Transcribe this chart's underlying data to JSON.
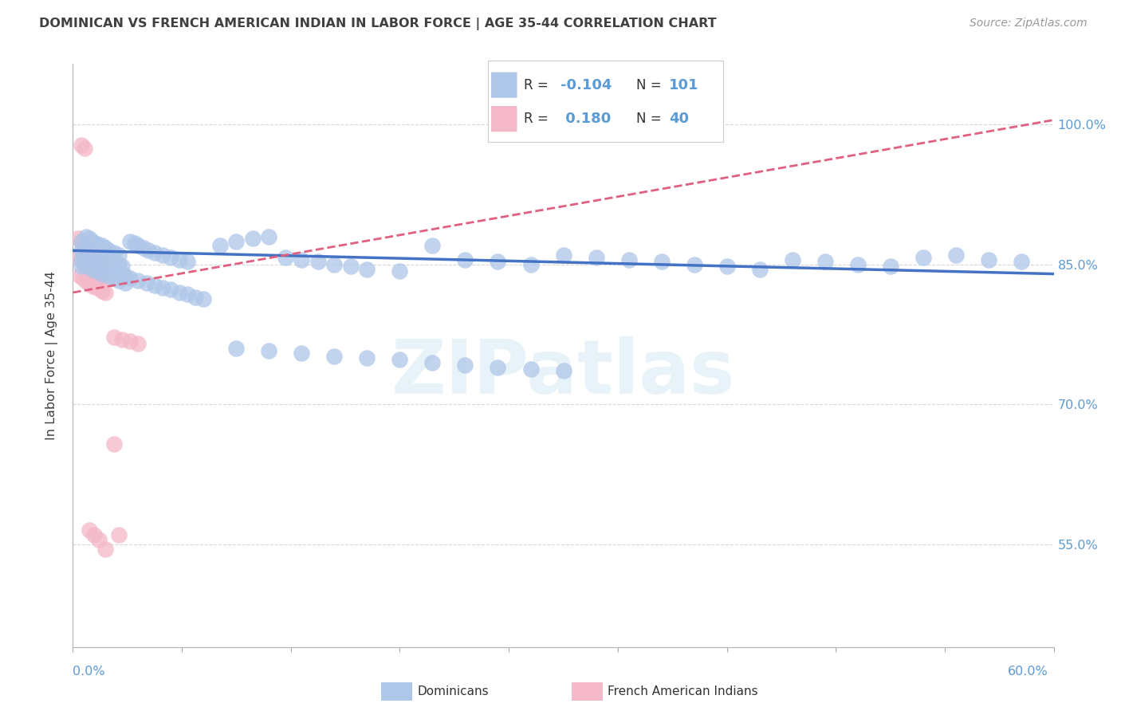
{
  "title": "DOMINICAN VS FRENCH AMERICAN INDIAN IN LABOR FORCE | AGE 35-44 CORRELATION CHART",
  "source": "Source: ZipAtlas.com",
  "ylabel": "In Labor Force | Age 35-44",
  "right_yticks": [
    0.55,
    0.7,
    0.85,
    1.0
  ],
  "right_yticklabels": [
    "55.0%",
    "70.0%",
    "85.0%",
    "100.0%"
  ],
  "xmin": 0.0,
  "xmax": 0.6,
  "ymin": 0.44,
  "ymax": 1.065,
  "legend_blue_R": "-0.104",
  "legend_blue_N": "101",
  "legend_pink_R": "0.180",
  "legend_pink_N": "40",
  "blue_color": "#aec6e8",
  "pink_color": "#f4b8c8",
  "blue_line_color": "#4472c4",
  "pink_line_color": "#e06080",
  "title_color": "#404040",
  "axis_color": "#5b9bd5",
  "watermark": "ZIPatlas",
  "blue_line_x0": 0.0,
  "blue_line_y0": 0.865,
  "blue_line_x1": 0.6,
  "blue_line_y1": 0.84,
  "pink_line_x0": 0.0,
  "pink_line_y0": 0.82,
  "pink_line_x1": 0.6,
  "pink_line_y1": 1.005,
  "blue_x": [
    0.005,
    0.008,
    0.01,
    0.012,
    0.015,
    0.018,
    0.02,
    0.022,
    0.025,
    0.028,
    0.005,
    0.008,
    0.01,
    0.013,
    0.016,
    0.019,
    0.022,
    0.025,
    0.028,
    0.03,
    0.005,
    0.007,
    0.01,
    0.012,
    0.015,
    0.018,
    0.02,
    0.025,
    0.03,
    0.032,
    0.005,
    0.007,
    0.009,
    0.012,
    0.015,
    0.018,
    0.022,
    0.025,
    0.028,
    0.032,
    0.035,
    0.038,
    0.04,
    0.043,
    0.046,
    0.05,
    0.055,
    0.06,
    0.065,
    0.07,
    0.035,
    0.04,
    0.045,
    0.05,
    0.055,
    0.06,
    0.065,
    0.07,
    0.075,
    0.08,
    0.09,
    0.1,
    0.11,
    0.12,
    0.13,
    0.14,
    0.15,
    0.16,
    0.17,
    0.18,
    0.2,
    0.22,
    0.24,
    0.26,
    0.28,
    0.3,
    0.32,
    0.34,
    0.36,
    0.38,
    0.4,
    0.42,
    0.44,
    0.46,
    0.48,
    0.5,
    0.52,
    0.54,
    0.56,
    0.58,
    0.1,
    0.12,
    0.14,
    0.16,
    0.18,
    0.2,
    0.22,
    0.24,
    0.26,
    0.28,
    0.3
  ],
  "blue_y": [
    0.875,
    0.88,
    0.878,
    0.875,
    0.872,
    0.87,
    0.868,
    0.865,
    0.863,
    0.86,
    0.865,
    0.868,
    0.865,
    0.862,
    0.86,
    0.858,
    0.855,
    0.853,
    0.85,
    0.848,
    0.855,
    0.858,
    0.855,
    0.852,
    0.85,
    0.848,
    0.845,
    0.843,
    0.84,
    0.838,
    0.848,
    0.85,
    0.848,
    0.845,
    0.843,
    0.84,
    0.838,
    0.835,
    0.833,
    0.83,
    0.875,
    0.873,
    0.87,
    0.868,
    0.865,
    0.863,
    0.86,
    0.858,
    0.855,
    0.853,
    0.835,
    0.833,
    0.83,
    0.828,
    0.825,
    0.823,
    0.82,
    0.818,
    0.815,
    0.813,
    0.87,
    0.875,
    0.878,
    0.88,
    0.858,
    0.855,
    0.853,
    0.85,
    0.848,
    0.845,
    0.843,
    0.87,
    0.855,
    0.853,
    0.85,
    0.86,
    0.858,
    0.855,
    0.853,
    0.85,
    0.848,
    0.845,
    0.855,
    0.853,
    0.85,
    0.848,
    0.858,
    0.86,
    0.855,
    0.853,
    0.76,
    0.758,
    0.755,
    0.752,
    0.75,
    0.748,
    0.745,
    0.742,
    0.74,
    0.738,
    0.736
  ],
  "pink_x": [
    0.003,
    0.005,
    0.007,
    0.008,
    0.01,
    0.012,
    0.013,
    0.015,
    0.017,
    0.019,
    0.003,
    0.005,
    0.007,
    0.008,
    0.01,
    0.012,
    0.013,
    0.015,
    0.017,
    0.02,
    0.004,
    0.006,
    0.008,
    0.01,
    0.012,
    0.015,
    0.018,
    0.02,
    0.025,
    0.028,
    0.005,
    0.007,
    0.01,
    0.013,
    0.016,
    0.02,
    0.025,
    0.03,
    0.035,
    0.04
  ],
  "pink_y": [
    0.878,
    0.875,
    0.872,
    0.87,
    0.868,
    0.865,
    0.863,
    0.86,
    0.858,
    0.855,
    0.858,
    0.855,
    0.852,
    0.85,
    0.848,
    0.845,
    0.843,
    0.84,
    0.838,
    0.835,
    0.838,
    0.835,
    0.832,
    0.83,
    0.827,
    0.825,
    0.822,
    0.82,
    0.658,
    0.56,
    0.978,
    0.975,
    0.565,
    0.56,
    0.555,
    0.545,
    0.772,
    0.77,
    0.768,
    0.765
  ]
}
